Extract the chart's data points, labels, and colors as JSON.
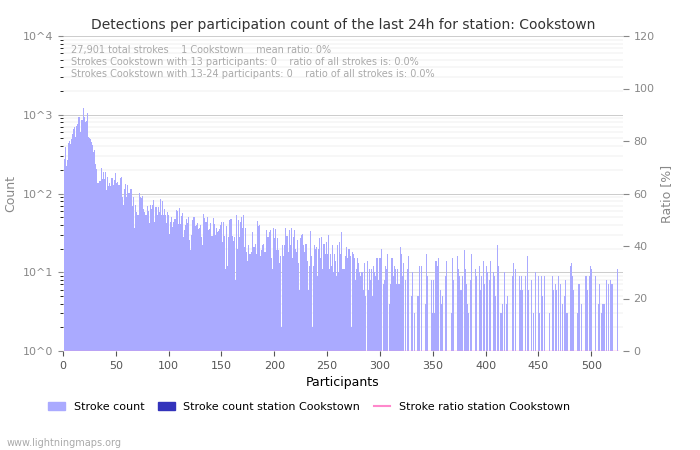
{
  "title": "Detections per participation count of the last 24h for station: Cookstown",
  "xlabel": "Participants",
  "ylabel_left": "Count",
  "ylabel_right": "Ratio [%]",
  "annotation_lines": [
    "27,901 total strokes    1 Cookstown    mean ratio: 0%",
    "Strokes Cookstown with 13 participants: 0    ratio of all strokes is: 0.0%",
    "Strokes Cookstown with 13-24 participants: 0    ratio of all strokes is: 0.0%"
  ],
  "watermark": "www.lightningmaps.org",
  "bar_color": "#aaaaff",
  "bar_color_station": "#3333bb",
  "ratio_line_color": "#ff88cc",
  "xlim": [
    0,
    530
  ],
  "ylim_right": [
    0,
    120
  ],
  "right_ticks": [
    0,
    20,
    40,
    60,
    80,
    100,
    120
  ],
  "xticks": [
    0,
    50,
    100,
    150,
    200,
    250,
    300,
    350,
    400,
    450,
    500
  ],
  "legend_entries": [
    "Stroke count",
    "Stroke count station Cookstown",
    "Stroke ratio station Cookstown"
  ],
  "seed": 12345
}
